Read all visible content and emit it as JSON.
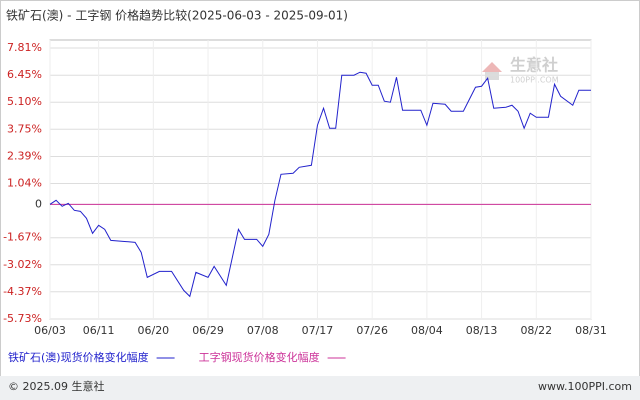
{
  "chart_data": {
    "type": "line",
    "title": "铁矿石(澳) - 工字钢 价格趋势比较(2025-06-03 - 2025-09-01)",
    "x": [
      "06/03",
      "06/04",
      "06/05",
      "06/06",
      "06/07",
      "06/08",
      "06/09",
      "06/10",
      "06/11",
      "06/12",
      "06/13",
      "06/15",
      "06/17",
      "06/18",
      "06/19",
      "06/21",
      "06/23",
      "06/25",
      "06/26",
      "06/27",
      "06/29",
      "06/30",
      "07/02",
      "07/04",
      "07/05",
      "07/07",
      "07/08",
      "07/09",
      "07/10",
      "07/11",
      "07/13",
      "07/14",
      "07/16",
      "07/17",
      "07/18",
      "07/19",
      "07/20",
      "07/21",
      "07/23",
      "07/24",
      "07/25",
      "07/26",
      "07/27",
      "07/28",
      "07/29",
      "07/30",
      "07/31",
      "08/03",
      "08/04",
      "08/05",
      "08/07",
      "08/08",
      "08/10",
      "08/12",
      "08/13",
      "08/14",
      "08/15",
      "08/17",
      "08/18",
      "08/19",
      "08/20",
      "08/21",
      "08/22",
      "08/24",
      "08/25",
      "08/26",
      "08/28",
      "08/29",
      "08/31"
    ],
    "xlim": [
      "06/03",
      "08/31"
    ],
    "xticks": [
      "06/03",
      "06/11",
      "06/20",
      "06/29",
      "07/08",
      "07/17",
      "07/26",
      "08/04",
      "08/13",
      "08/22",
      "08/31"
    ],
    "series": [
      {
        "name": "铁矿石(澳)现货价格变化幅度",
        "color": "#2222cc",
        "values": [
          0,
          0.2,
          -0.1,
          0.05,
          -0.3,
          -0.35,
          -0.7,
          -1.45,
          -1.05,
          -1.25,
          -1.8,
          -1.85,
          -1.9,
          -2.4,
          -3.65,
          -3.35,
          -3.35,
          -4.3,
          -4.6,
          -3.4,
          -3.65,
          -3.1,
          -4.05,
          -1.25,
          -1.75,
          -1.75,
          -2.1,
          -1.5,
          0.2,
          1.5,
          1.55,
          1.85,
          1.95,
          3.95,
          4.8,
          3.8,
          3.8,
          6.45,
          6.45,
          6.6,
          6.55,
          5.95,
          5.95,
          5.15,
          5.1,
          6.35,
          4.7,
          4.7,
          3.95,
          5.05,
          5.0,
          4.65,
          4.65,
          5.85,
          5.9,
          6.3,
          4.8,
          4.85,
          4.95,
          4.65,
          3.8,
          4.55,
          4.35,
          4.35,
          6.0,
          5.4,
          4.95,
          5.7,
          5.7
        ]
      },
      {
        "name": "工字钢现货价格变化幅度",
        "color": "#cc3399",
        "values": [
          0,
          0,
          0,
          0,
          0,
          0,
          0,
          0,
          0,
          0,
          0,
          0,
          0,
          0,
          0,
          0,
          0,
          0,
          0,
          0,
          0,
          0,
          0,
          0,
          0,
          0,
          0,
          0,
          0,
          0,
          0,
          0,
          0,
          0,
          0,
          0,
          0,
          0,
          0,
          0,
          0,
          0,
          0,
          0,
          0,
          0,
          0,
          0,
          0,
          0,
          0,
          0,
          0,
          0,
          0,
          0,
          0,
          0,
          0,
          0,
          0,
          0,
          0,
          0,
          0,
          0,
          0,
          0,
          0
        ]
      }
    ],
    "ylim": [
      -5.73,
      7.81
    ],
    "yticks": [
      {
        "value": 7.81,
        "label": "7.81%"
      },
      {
        "value": 6.45,
        "label": "6.45%"
      },
      {
        "value": 5.1,
        "label": "5.10%"
      },
      {
        "value": 3.75,
        "label": "3.75%"
      },
      {
        "value": 2.39,
        "label": "2.39%"
      },
      {
        "value": 1.04,
        "label": "1.04%"
      },
      0,
      {
        "value": -1.67,
        "label": "-1.67%"
      },
      {
        "value": -3.02,
        "label": "-3.02%"
      },
      {
        "value": -4.37,
        "label": "-4.37%"
      },
      {
        "value": -5.73,
        "label": "-5.73%"
      }
    ],
    "grid": true,
    "watermark": {
      "name": "生意社",
      "site": "100PPI.COM"
    },
    "footer": {
      "copyright": "© 2025.09 生意社",
      "site": "www.100PPI.com"
    }
  }
}
